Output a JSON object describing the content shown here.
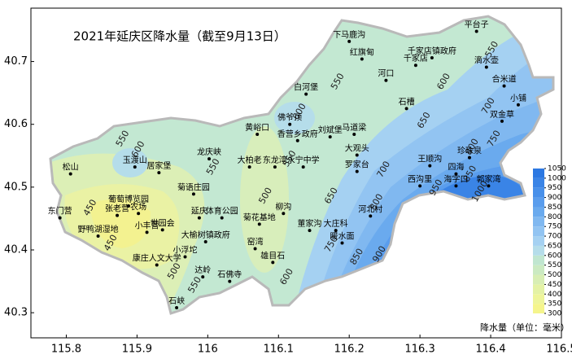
{
  "title": "2021年延庆区降水量（截至9月13日）",
  "map": {
    "xlim": [
      115.75,
      116.5
    ],
    "ylim": [
      40.26,
      40.785
    ],
    "xticks": [
      115.8,
      115.9,
      116,
      116.1,
      116.2,
      116.3,
      116.4,
      116.5
    ],
    "yticks": [
      40.3,
      40.4,
      40.5,
      40.6,
      40.7
    ],
    "stations": [
      {
        "name": "平台子",
        "lon": 116.38,
        "lat": 40.748
      },
      {
        "name": "下马鹿沟",
        "lon": 116.2,
        "lat": 40.732
      },
      {
        "name": "红旗甸",
        "lon": 116.218,
        "lat": 40.704
      },
      {
        "name": "千家店镇政府",
        "lon": 116.317,
        "lat": 40.706
      },
      {
        "name": "千家店",
        "lon": 116.294,
        "lat": 40.694
      },
      {
        "name": "河口",
        "lon": 116.252,
        "lat": 40.67
      },
      {
        "name": "滴水壶",
        "lon": 116.394,
        "lat": 40.691
      },
      {
        "name": "白河堡",
        "lon": 116.139,
        "lat": 40.648
      },
      {
        "name": "合米道",
        "lon": 116.419,
        "lat": 40.661
      },
      {
        "name": "小铺",
        "lon": 116.439,
        "lat": 40.631
      },
      {
        "name": "石槽",
        "lon": 116.281,
        "lat": 40.625
      },
      {
        "name": "佛爷顶",
        "lon": 116.116,
        "lat": 40.6
      },
      {
        "name": "双金草",
        "lon": 116.416,
        "lat": 40.605
      },
      {
        "name": "黄峪口",
        "lon": 116.07,
        "lat": 40.584
      },
      {
        "name": "香营乡政府",
        "lon": 116.127,
        "lat": 40.574
      },
      {
        "name": "刘斌堡",
        "lon": 116.173,
        "lat": 40.58
      },
      {
        "name": "马道梁",
        "lon": 116.207,
        "lat": 40.584
      },
      {
        "name": "大观头",
        "lon": 116.211,
        "lat": 40.551
      },
      {
        "name": "珍珠泉",
        "lon": 116.37,
        "lat": 40.547
      },
      {
        "name": "玉渡山",
        "lon": 115.897,
        "lat": 40.532
      },
      {
        "name": "居家堡",
        "lon": 115.931,
        "lat": 40.523
      },
      {
        "name": "龙庆峡",
        "lon": 116.002,
        "lat": 40.545
      },
      {
        "name": "大柏老",
        "lon": 116.059,
        "lat": 40.532
      },
      {
        "name": "东龙湾",
        "lon": 116.095,
        "lat": 40.532
      },
      {
        "name": "永宁中学",
        "lon": 116.135,
        "lat": 40.532
      },
      {
        "name": "罗家台",
        "lon": 116.211,
        "lat": 40.525
      },
      {
        "name": "王顺沟",
        "lon": 116.314,
        "lat": 40.534
      },
      {
        "name": "四海",
        "lon": 116.351,
        "lat": 40.521
      },
      {
        "name": "海字口",
        "lon": 116.351,
        "lat": 40.502
      },
      {
        "name": "西沟里",
        "lon": 116.3,
        "lat": 40.502
      },
      {
        "name": "郭家湾",
        "lon": 116.397,
        "lat": 40.502
      },
      {
        "name": "松山",
        "lon": 115.806,
        "lat": 40.521
      },
      {
        "name": "葡萄博览园",
        "lon": 115.888,
        "lat": 40.47
      },
      {
        "name": "菊语庄园",
        "lon": 115.98,
        "lat": 40.489
      },
      {
        "name": "东门营",
        "lon": 115.791,
        "lat": 40.451
      },
      {
        "name": "张老营",
        "lon": 115.872,
        "lat": 40.455
      },
      {
        "name": "农场",
        "lon": 115.902,
        "lat": 40.458
      },
      {
        "name": "延庆",
        "lon": 115.988,
        "lat": 40.451
      },
      {
        "name": "体育公园",
        "lon": 116.02,
        "lat": 40.451
      },
      {
        "name": "世园会",
        "lon": 115.936,
        "lat": 40.432
      },
      {
        "name": "小丰营",
        "lon": 115.914,
        "lat": 40.428
      },
      {
        "name": "菊花基地",
        "lon": 116.073,
        "lat": 40.441
      },
      {
        "name": "柳沟",
        "lon": 116.107,
        "lat": 40.458
      },
      {
        "name": "野鸭湖湿地",
        "lon": 115.845,
        "lat": 40.422
      },
      {
        "name": "大榆树镇政府",
        "lon": 115.997,
        "lat": 40.413
      },
      {
        "name": "董家沟",
        "lon": 116.144,
        "lat": 40.431
      },
      {
        "name": "大庄科",
        "lon": 116.181,
        "lat": 40.431
      },
      {
        "name": "河北村",
        "lon": 116.23,
        "lat": 40.454
      },
      {
        "name": "暖水面",
        "lon": 116.19,
        "lat": 40.411
      },
      {
        "name": "窑湾",
        "lon": 116.067,
        "lat": 40.402
      },
      {
        "name": "康庄人文大学",
        "lon": 115.928,
        "lat": 40.376
      },
      {
        "name": "小浮坨",
        "lon": 115.968,
        "lat": 40.389
      },
      {
        "name": "雄目石",
        "lon": 116.092,
        "lat": 40.38
      },
      {
        "name": "达岭",
        "lon": 115.993,
        "lat": 40.357
      },
      {
        "name": "石佛寺",
        "lon": 116.031,
        "lat": 40.35
      },
      {
        "name": "石峡",
        "lon": 115.956,
        "lat": 40.308
      }
    ],
    "contour_labels": [
      {
        "value": 550,
        "lon": 116.402,
        "lat": 40.719
      },
      {
        "value": 600,
        "lon": 116.334,
        "lat": 40.668
      },
      {
        "value": 550,
        "lon": 116.184,
        "lat": 40.668
      },
      {
        "value": 700,
        "lon": 116.397,
        "lat": 40.629
      },
      {
        "value": 650,
        "lon": 116.306,
        "lat": 40.606
      },
      {
        "value": 750,
        "lon": 116.405,
        "lat": 40.577
      },
      {
        "value": 800,
        "lon": 116.374,
        "lat": 40.564
      },
      {
        "value": 850,
        "lon": 116.371,
        "lat": 40.521
      },
      {
        "value": 950,
        "lon": 116.323,
        "lat": 40.499
      },
      {
        "value": 1000,
        "lon": 116.385,
        "lat": 40.493
      },
      {
        "value": 600,
        "lon": 115.902,
        "lat": 40.56
      },
      {
        "value": 550,
        "lon": 115.88,
        "lat": 40.577
      },
      {
        "value": 450,
        "lon": 115.834,
        "lat": 40.467
      },
      {
        "value": 450,
        "lon": 115.863,
        "lat": 40.411
      },
      {
        "value": 500,
        "lon": 115.953,
        "lat": 40.366
      },
      {
        "value": 550,
        "lon": 115.982,
        "lat": 40.344
      },
      {
        "value": 600,
        "lon": 116.13,
        "lat": 40.62
      },
      {
        "value": 550,
        "lon": 116.116,
        "lat": 40.545
      },
      {
        "value": 500,
        "lon": 116.082,
        "lat": 40.486
      },
      {
        "value": 550,
        "lon": 116.008,
        "lat": 40.532
      },
      {
        "value": 600,
        "lon": 116.112,
        "lat": 40.357
      },
      {
        "value": 650,
        "lon": 116.175,
        "lat": 40.486
      },
      {
        "value": 700,
        "lon": 116.249,
        "lat": 40.528
      },
      {
        "value": 750,
        "lon": 116.175,
        "lat": 40.409
      },
      {
        "value": 800,
        "lon": 116.239,
        "lat": 40.476
      },
      {
        "value": 850,
        "lon": 116.211,
        "lat": 40.389
      },
      {
        "value": 900,
        "lon": 116.243,
        "lat": 40.393
      }
    ]
  },
  "colorbar": {
    "title": "降水量（单位：毫米）",
    "ticks": [
      300,
      350,
      400,
      450,
      500,
      550,
      600,
      650,
      700,
      750,
      800,
      850,
      900,
      950,
      1000,
      1050
    ],
    "colors": [
      "#f5f58c",
      "#eef59a",
      "#e4f2a5",
      "#d8eeb4",
      "#cbeac2",
      "#c0e6d0",
      "#b5ddea",
      "#a5d1f2",
      "#92c4f2",
      "#80b8f0",
      "#6aaaee",
      "#5a9ded",
      "#4890ea",
      "#3a84e6",
      "#2c78e2"
    ]
  }
}
